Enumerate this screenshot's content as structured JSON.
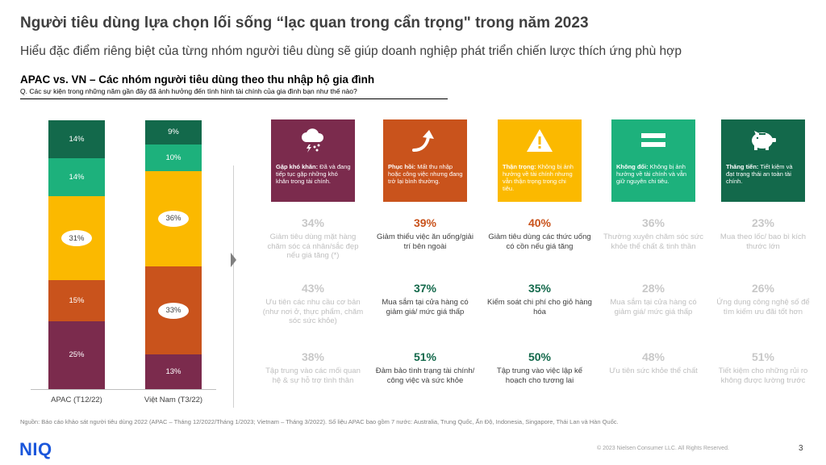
{
  "header": {
    "title": "Người tiêu dùng lựa chọn lối sống “lạc quan trong cẩn trọng\" trong năm 2023",
    "subtitle": "Hiểu đặc điểm riêng biệt của từng nhóm người tiêu dùng sẽ giúp doanh nghiệp phát triển chiến lược thích ứng phù hợp",
    "section_title": "APAC vs. VN – Các nhóm người tiêu dùng theo thu nhập hộ gia đình",
    "question": "Q. Các sự kiện trong những năm gần đây đã ảnh hưởng đến tình hình tài chính của gia đình bạn như thế nào?"
  },
  "chart_data": {
    "type": "bar",
    "stacked": true,
    "categories": [
      "APAC (T12/22)",
      "Việt Nam (T3/22)"
    ],
    "series": [
      {
        "key": "gap_kho_khan",
        "values": [
          25,
          13
        ],
        "labels": [
          "25%",
          "13%"
        ],
        "color": "#7b2b4d"
      },
      {
        "key": "phuc_hoi",
        "values": [
          15,
          33
        ],
        "labels": [
          "15%",
          "33%"
        ],
        "color": "#c9531c"
      },
      {
        "key": "than_trong",
        "values": [
          31,
          36
        ],
        "labels": [
          "31%",
          "36%"
        ],
        "color": "#fbb900"
      },
      {
        "key": "khong_doi",
        "values": [
          14,
          10
        ],
        "labels": [
          "14%",
          "10%"
        ],
        "color": "#1db17c"
      },
      {
        "key": "thang_tien",
        "values": [
          14,
          9
        ],
        "labels": [
          "14%",
          "9%"
        ],
        "color": "#13694b"
      }
    ]
  },
  "groups": [
    {
      "color": "#7b2b4d",
      "icon": "storm-cloud-icon",
      "label_bold": "Gặp khó khăn:",
      "label_text": " Đã và đang tiếp tục gặp những khó khăn trong tài chính.",
      "faded": true,
      "stats": [
        {
          "pct": "34%",
          "text": "Giảm tiêu dùng mặt hàng chăm sóc cá nhân/sắc đẹp nếu giá tăng (*)"
        },
        {
          "pct": "43%",
          "text": "Ưu tiên các nhu cầu cơ bản (như nơi ở, thực phẩm, chăm sóc sức khỏe)"
        },
        {
          "pct": "38%",
          "text": "Tập trung vào các mối quan hệ & sự hỗ trợ tình thân"
        }
      ]
    },
    {
      "color": "#c9531c",
      "icon": "upturn-arrow-icon",
      "label_bold": "Phục hồi:",
      "label_text": " Mất thu nhập hoặc công việc nhưng đang trở lại bình thường.",
      "faded": false,
      "stats": [
        {
          "pct": "39%",
          "text": "Giảm thiểu việc ăn uống/giải trí bên ngoài",
          "pct_color": "#c9531c"
        },
        {
          "pct": "37%",
          "text": "Mua sắm tại cửa hàng có giảm giá/ mức giá thấp",
          "pct_color": "#13694b"
        },
        {
          "pct": "51%",
          "text": "Đảm bảo tình trạng tài chính/ công việc và sức khỏe",
          "pct_color": "#13694b"
        }
      ]
    },
    {
      "color": "#fbb900",
      "icon": "warning-icon",
      "label_bold": "Thận trọng:",
      "label_text": " Không bị ảnh hưởng về tài chính nhưng vẫn thận trọng trong chi tiêu.",
      "faded": false,
      "stats": [
        {
          "pct": "40%",
          "text": "Giảm tiêu dùng các thức uống có cồn nếu giá tăng",
          "pct_color": "#c9531c"
        },
        {
          "pct": "35%",
          "text": "Kiểm soát chi phí cho giỏ hàng hóa",
          "pct_color": "#13694b"
        },
        {
          "pct": "50%",
          "text": "Tập trung vào việc lập kế hoạch cho tương lai",
          "pct_color": "#13694b"
        }
      ]
    },
    {
      "color": "#1db17c",
      "icon": "equals-icon",
      "label_bold": "Không đổi:",
      "label_text": " Không bị ảnh hưởng về tài chính và vẫn giữ nguyên chi tiêu.",
      "faded": true,
      "stats": [
        {
          "pct": "36%",
          "text": "Thường xuyên chăm sóc sức khỏe thể chất & tinh thần"
        },
        {
          "pct": "28%",
          "text": "Mua sắm tại cửa hàng có giảm giá/ mức giá thấp"
        },
        {
          "pct": "48%",
          "text": "Ưu tiên sức khỏe thể chất"
        }
      ]
    },
    {
      "color": "#13694b",
      "icon": "piggy-bank-icon",
      "label_bold": "Thăng tiến:",
      "label_text": " Tiết kiệm và đạt trạng thái an toàn tài chính.",
      "faded": true,
      "stats": [
        {
          "pct": "23%",
          "text": "Mua theo lốc/ bao bì kích thước lớn"
        },
        {
          "pct": "26%",
          "text": "Ứng dụng công nghệ số để tìm kiếm ưu đãi tốt hơn"
        },
        {
          "pct": "51%",
          "text": "Tiết kiệm cho những rủi ro không được lường trước"
        }
      ]
    }
  ],
  "footer": {
    "source": "Nguồn: Báo cáo khảo sát người tiêu dùng 2022 (APAC – Tháng 12/2022/Tháng 1/2023; Vietnam – Tháng 3/2022). Số liệu APAC bao gồm 7 nước: Australia, Trung Quốc, Ấn Độ, Indonesia, Singapore, Thái Lan và Hàn Quốc.",
    "logo": "NIQ",
    "copyright": "© 2023 Nielsen Consumer LLC. All Rights Reserved.",
    "page": "3"
  },
  "colors": {
    "faded_pct": "#c8c8c8",
    "faded_text": "#bfbfbf",
    "dark_text": "#404040"
  }
}
